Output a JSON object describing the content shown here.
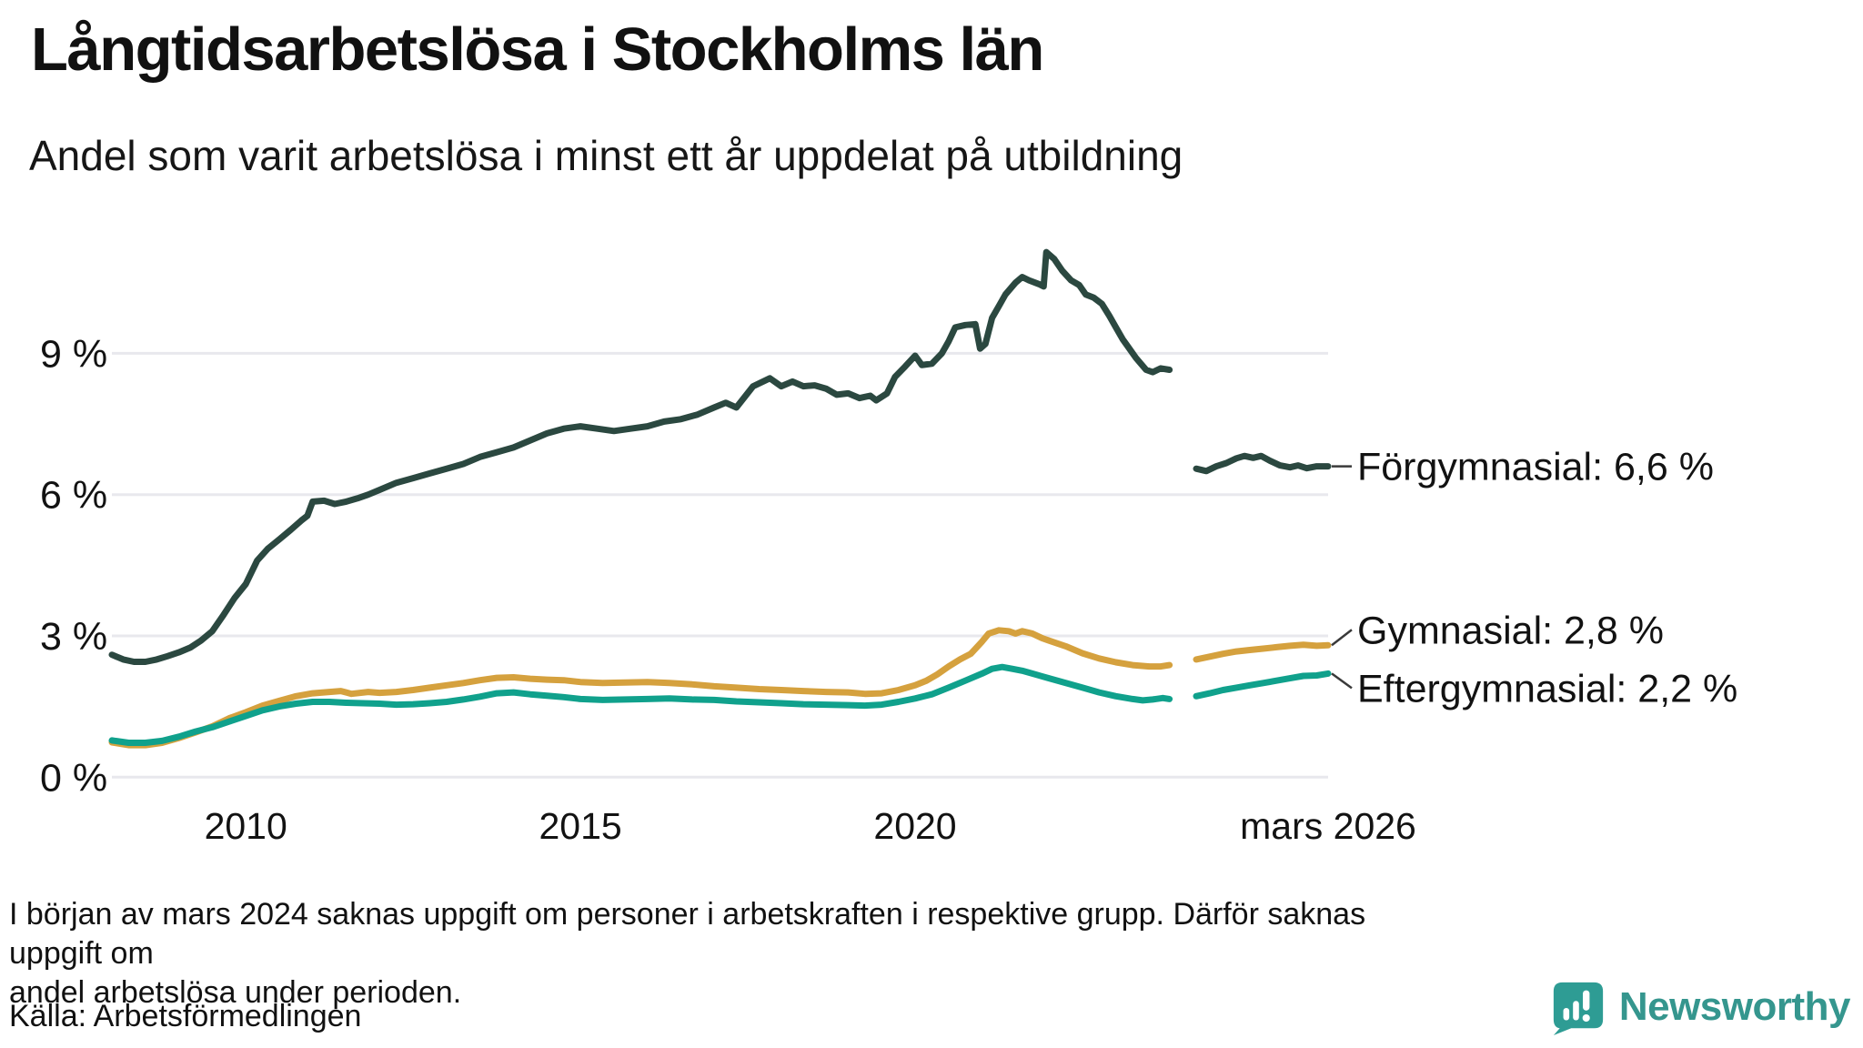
{
  "chart_data": {
    "type": "line",
    "title": "Långtidsarbetslösa i Stockholms län",
    "subtitle": "Andel som varit arbetslösa i minst ett år uppdelat på utbildning",
    "x_axis": {
      "range": [
        2008,
        2026.17
      ],
      "ticks": [
        {
          "x": 2010,
          "label": "2010"
        },
        {
          "x": 2015,
          "label": "2015"
        },
        {
          "x": 2020,
          "label": "2020"
        },
        {
          "x": 2026.17,
          "label": "mars 2026"
        }
      ]
    },
    "y_axis": {
      "range": [
        0,
        11.6
      ],
      "unit": "%",
      "grid": true,
      "ticks": [
        {
          "v": 0,
          "label": "0 %"
        },
        {
          "v": 3,
          "label": "3 %"
        },
        {
          "v": 6,
          "label": "6 %"
        },
        {
          "v": 9,
          "label": "9 %"
        }
      ]
    },
    "data_gap": {
      "around": "mars 2024"
    },
    "legend_position": "end-of-line",
    "series": [
      {
        "name": "Förgymnasial",
        "color": "#2B4840",
        "end_label": "Förgymnasial: 6,6 %",
        "end_value": "6,6 %",
        "points": [
          [
            2008.0,
            2.6
          ],
          [
            2008.17,
            2.5
          ],
          [
            2008.33,
            2.45
          ],
          [
            2008.5,
            2.45
          ],
          [
            2008.67,
            2.5
          ],
          [
            2008.83,
            2.57
          ],
          [
            2009.0,
            2.65
          ],
          [
            2009.17,
            2.75
          ],
          [
            2009.33,
            2.9
          ],
          [
            2009.5,
            3.1
          ],
          [
            2009.67,
            3.45
          ],
          [
            2009.83,
            3.8
          ],
          [
            2010.0,
            4.1
          ],
          [
            2010.17,
            4.6
          ],
          [
            2010.33,
            4.85
          ],
          [
            2010.5,
            5.05
          ],
          [
            2010.67,
            5.25
          ],
          [
            2010.83,
            5.45
          ],
          [
            2010.92,
            5.55
          ],
          [
            2011.0,
            5.85
          ],
          [
            2011.17,
            5.87
          ],
          [
            2011.33,
            5.8
          ],
          [
            2011.5,
            5.85
          ],
          [
            2011.67,
            5.92
          ],
          [
            2011.83,
            6.0
          ],
          [
            2012.0,
            6.1
          ],
          [
            2012.25,
            6.25
          ],
          [
            2012.5,
            6.35
          ],
          [
            2012.75,
            6.45
          ],
          [
            2013.0,
            6.55
          ],
          [
            2013.25,
            6.65
          ],
          [
            2013.5,
            6.8
          ],
          [
            2013.75,
            6.9
          ],
          [
            2014.0,
            7.0
          ],
          [
            2014.25,
            7.15
          ],
          [
            2014.5,
            7.3
          ],
          [
            2014.75,
            7.4
          ],
          [
            2015.0,
            7.45
          ],
          [
            2015.25,
            7.4
          ],
          [
            2015.5,
            7.35
          ],
          [
            2015.75,
            7.4
          ],
          [
            2016.0,
            7.45
          ],
          [
            2016.25,
            7.55
          ],
          [
            2016.5,
            7.6
          ],
          [
            2016.75,
            7.7
          ],
          [
            2017.0,
            7.85
          ],
          [
            2017.17,
            7.95
          ],
          [
            2017.33,
            7.85
          ],
          [
            2017.58,
            8.3
          ],
          [
            2017.83,
            8.47
          ],
          [
            2018.0,
            8.3
          ],
          [
            2018.17,
            8.4
          ],
          [
            2018.33,
            8.3
          ],
          [
            2018.5,
            8.32
          ],
          [
            2018.67,
            8.25
          ],
          [
            2018.83,
            8.12
          ],
          [
            2019.0,
            8.15
          ],
          [
            2019.17,
            8.05
          ],
          [
            2019.33,
            8.1
          ],
          [
            2019.42,
            8.0
          ],
          [
            2019.58,
            8.15
          ],
          [
            2019.7,
            8.5
          ],
          [
            2019.85,
            8.72
          ],
          [
            2020.0,
            8.95
          ],
          [
            2020.1,
            8.75
          ],
          [
            2020.25,
            8.78
          ],
          [
            2020.4,
            9.0
          ],
          [
            2020.5,
            9.25
          ],
          [
            2020.6,
            9.55
          ],
          [
            2020.75,
            9.6
          ],
          [
            2020.9,
            9.62
          ],
          [
            2020.97,
            9.1
          ],
          [
            2021.05,
            9.2
          ],
          [
            2021.15,
            9.75
          ],
          [
            2021.25,
            10.0
          ],
          [
            2021.35,
            10.25
          ],
          [
            2021.5,
            10.5
          ],
          [
            2021.6,
            10.62
          ],
          [
            2021.7,
            10.55
          ],
          [
            2021.85,
            10.47
          ],
          [
            2021.92,
            10.42
          ],
          [
            2021.96,
            11.15
          ],
          [
            2022.08,
            11.0
          ],
          [
            2022.2,
            10.75
          ],
          [
            2022.33,
            10.55
          ],
          [
            2022.45,
            10.45
          ],
          [
            2022.55,
            10.25
          ],
          [
            2022.67,
            10.18
          ],
          [
            2022.79,
            10.05
          ],
          [
            2022.9,
            9.8
          ],
          [
            2023.0,
            9.55
          ],
          [
            2023.1,
            9.3
          ],
          [
            2023.2,
            9.1
          ],
          [
            2023.3,
            8.9
          ],
          [
            2023.45,
            8.65
          ],
          [
            2023.55,
            8.6
          ],
          [
            2023.67,
            8.68
          ],
          [
            2023.8,
            8.65
          ],
          null,
          [
            2024.2,
            6.55
          ],
          [
            2024.35,
            6.5
          ],
          [
            2024.5,
            6.6
          ],
          [
            2024.65,
            6.67
          ],
          [
            2024.8,
            6.77
          ],
          [
            2024.92,
            6.82
          ],
          [
            2025.05,
            6.78
          ],
          [
            2025.17,
            6.82
          ],
          [
            2025.3,
            6.72
          ],
          [
            2025.45,
            6.62
          ],
          [
            2025.6,
            6.58
          ],
          [
            2025.72,
            6.62
          ],
          [
            2025.85,
            6.56
          ],
          [
            2026.0,
            6.6
          ],
          [
            2026.17,
            6.6
          ]
        ]
      },
      {
        "name": "Gymnasial",
        "color": "#D5A13E",
        "end_label": "Gymnasial: 2,8 %",
        "end_value": "2,8 %",
        "points": [
          [
            2008.0,
            0.74
          ],
          [
            2008.25,
            0.68
          ],
          [
            2008.5,
            0.68
          ],
          [
            2008.75,
            0.73
          ],
          [
            2009.0,
            0.83
          ],
          [
            2009.25,
            0.95
          ],
          [
            2009.5,
            1.08
          ],
          [
            2009.75,
            1.25
          ],
          [
            2010.0,
            1.38
          ],
          [
            2010.25,
            1.52
          ],
          [
            2010.5,
            1.62
          ],
          [
            2010.75,
            1.72
          ],
          [
            2011.0,
            1.78
          ],
          [
            2011.25,
            1.81
          ],
          [
            2011.42,
            1.83
          ],
          [
            2011.58,
            1.77
          ],
          [
            2011.83,
            1.81
          ],
          [
            2012.0,
            1.79
          ],
          [
            2012.25,
            1.81
          ],
          [
            2012.5,
            1.85
          ],
          [
            2012.75,
            1.9
          ],
          [
            2013.0,
            1.95
          ],
          [
            2013.25,
            2.0
          ],
          [
            2013.5,
            2.06
          ],
          [
            2013.75,
            2.11
          ],
          [
            2014.0,
            2.12
          ],
          [
            2014.25,
            2.09
          ],
          [
            2014.5,
            2.07
          ],
          [
            2014.75,
            2.06
          ],
          [
            2015.0,
            2.02
          ],
          [
            2015.33,
            2.0
          ],
          [
            2015.67,
            2.01
          ],
          [
            2016.0,
            2.02
          ],
          [
            2016.33,
            2.0
          ],
          [
            2016.67,
            1.97
          ],
          [
            2017.0,
            1.93
          ],
          [
            2017.33,
            1.9
          ],
          [
            2017.67,
            1.87
          ],
          [
            2018.0,
            1.85
          ],
          [
            2018.33,
            1.83
          ],
          [
            2018.67,
            1.81
          ],
          [
            2019.0,
            1.8
          ],
          [
            2019.25,
            1.77
          ],
          [
            2019.5,
            1.78
          ],
          [
            2019.75,
            1.85
          ],
          [
            2020.0,
            1.95
          ],
          [
            2020.17,
            2.05
          ],
          [
            2020.33,
            2.18
          ],
          [
            2020.5,
            2.35
          ],
          [
            2020.67,
            2.5
          ],
          [
            2020.83,
            2.62
          ],
          [
            2021.0,
            2.88
          ],
          [
            2021.1,
            3.05
          ],
          [
            2021.25,
            3.12
          ],
          [
            2021.4,
            3.1
          ],
          [
            2021.5,
            3.05
          ],
          [
            2021.6,
            3.1
          ],
          [
            2021.75,
            3.05
          ],
          [
            2021.9,
            2.95
          ],
          [
            2022.0,
            2.9
          ],
          [
            2022.25,
            2.78
          ],
          [
            2022.5,
            2.63
          ],
          [
            2022.75,
            2.52
          ],
          [
            2023.0,
            2.44
          ],
          [
            2023.25,
            2.38
          ],
          [
            2023.5,
            2.35
          ],
          [
            2023.67,
            2.35
          ],
          [
            2023.8,
            2.38
          ],
          null,
          [
            2024.2,
            2.5
          ],
          [
            2024.4,
            2.56
          ],
          [
            2024.6,
            2.62
          ],
          [
            2024.8,
            2.67
          ],
          [
            2025.0,
            2.7
          ],
          [
            2025.2,
            2.73
          ],
          [
            2025.4,
            2.76
          ],
          [
            2025.6,
            2.79
          ],
          [
            2025.8,
            2.81
          ],
          [
            2026.0,
            2.79
          ],
          [
            2026.17,
            2.8
          ]
        ]
      },
      {
        "name": "Eftergymnasial",
        "color": "#10A18C",
        "end_label": "Eftergymnasial: 2,2 %",
        "end_value": "2,2 %",
        "points": [
          [
            2008.0,
            0.78
          ],
          [
            2008.25,
            0.73
          ],
          [
            2008.5,
            0.73
          ],
          [
            2008.75,
            0.77
          ],
          [
            2009.0,
            0.86
          ],
          [
            2009.25,
            0.97
          ],
          [
            2009.5,
            1.06
          ],
          [
            2009.75,
            1.18
          ],
          [
            2010.0,
            1.3
          ],
          [
            2010.25,
            1.42
          ],
          [
            2010.5,
            1.5
          ],
          [
            2010.75,
            1.56
          ],
          [
            2011.0,
            1.6
          ],
          [
            2011.25,
            1.6
          ],
          [
            2011.5,
            1.58
          ],
          [
            2011.75,
            1.57
          ],
          [
            2012.0,
            1.56
          ],
          [
            2012.25,
            1.54
          ],
          [
            2012.5,
            1.55
          ],
          [
            2012.75,
            1.57
          ],
          [
            2013.0,
            1.6
          ],
          [
            2013.25,
            1.65
          ],
          [
            2013.5,
            1.71
          ],
          [
            2013.75,
            1.78
          ],
          [
            2014.0,
            1.8
          ],
          [
            2014.25,
            1.76
          ],
          [
            2014.5,
            1.73
          ],
          [
            2014.75,
            1.7
          ],
          [
            2015.0,
            1.66
          ],
          [
            2015.33,
            1.64
          ],
          [
            2015.67,
            1.65
          ],
          [
            2016.0,
            1.66
          ],
          [
            2016.33,
            1.67
          ],
          [
            2016.67,
            1.65
          ],
          [
            2017.0,
            1.64
          ],
          [
            2017.33,
            1.61
          ],
          [
            2017.67,
            1.59
          ],
          [
            2018.0,
            1.57
          ],
          [
            2018.33,
            1.55
          ],
          [
            2018.67,
            1.54
          ],
          [
            2019.0,
            1.53
          ],
          [
            2019.25,
            1.52
          ],
          [
            2019.5,
            1.54
          ],
          [
            2019.75,
            1.6
          ],
          [
            2020.0,
            1.67
          ],
          [
            2020.25,
            1.76
          ],
          [
            2020.5,
            1.9
          ],
          [
            2020.75,
            2.05
          ],
          [
            2021.0,
            2.2
          ],
          [
            2021.15,
            2.3
          ],
          [
            2021.3,
            2.34
          ],
          [
            2021.45,
            2.3
          ],
          [
            2021.6,
            2.26
          ],
          [
            2021.75,
            2.2
          ],
          [
            2022.0,
            2.1
          ],
          [
            2022.25,
            2.0
          ],
          [
            2022.5,
            1.9
          ],
          [
            2022.75,
            1.8
          ],
          [
            2023.0,
            1.72
          ],
          [
            2023.25,
            1.66
          ],
          [
            2023.4,
            1.63
          ],
          [
            2023.55,
            1.65
          ],
          [
            2023.7,
            1.68
          ],
          [
            2023.8,
            1.66
          ],
          null,
          [
            2024.2,
            1.72
          ],
          [
            2024.4,
            1.78
          ],
          [
            2024.6,
            1.85
          ],
          [
            2024.8,
            1.9
          ],
          [
            2025.0,
            1.95
          ],
          [
            2025.2,
            2.0
          ],
          [
            2025.4,
            2.05
          ],
          [
            2025.6,
            2.1
          ],
          [
            2025.8,
            2.15
          ],
          [
            2026.0,
            2.16
          ],
          [
            2026.17,
            2.2
          ]
        ]
      }
    ]
  },
  "footer": {
    "note_line1": "I början av mars 2024 saknas uppgift om personer i arbetskraften i respektive grupp. Därför saknas uppgift om",
    "note_line2": "andel arbetslösa under perioden.",
    "source": "Källa: Arbetsförmedlingen",
    "brand": "Newsworthy"
  },
  "colors": {
    "forgymnasial": "#2B4840",
    "gymnasial": "#D5A13E",
    "eftergymnasial": "#10A18C",
    "grid": "#E8E8ED",
    "brand_teal": "#35968E",
    "logo_badge": "#2E9C94"
  }
}
